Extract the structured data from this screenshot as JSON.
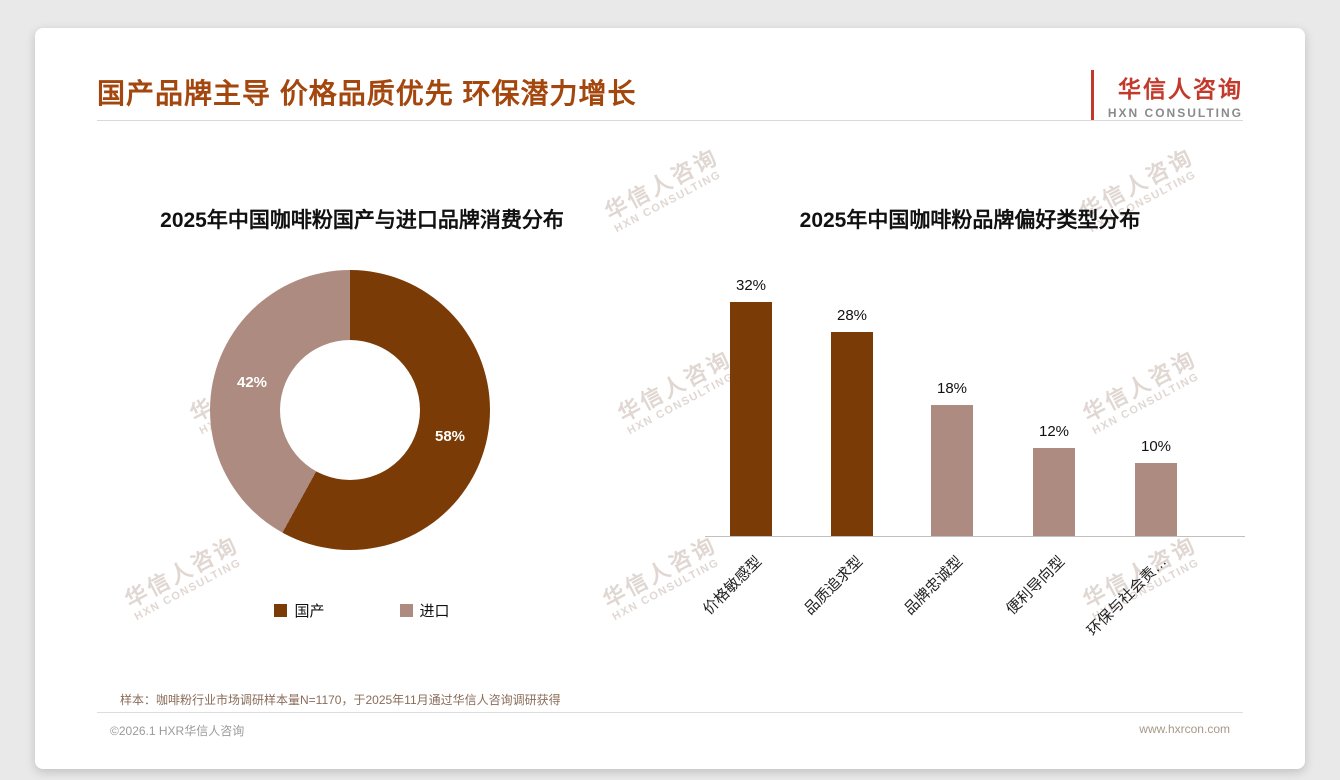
{
  "page": {
    "title": "国产品牌主导 价格品质优先 环保潜力增长",
    "logo": {
      "name": "华信人咨询",
      "subtitle": "HXN CONSULTING"
    },
    "footnote": "样本：咖啡粉行业市场调研样本量N=1170，于2025年11月通过华信人咨询调研获得",
    "footer": {
      "copyright": "©2026.1 HXR华信人咨询",
      "website": "www.hxrcon.com"
    },
    "watermark": {
      "line1": "华信人咨询",
      "line2": "HXN CONSULTING"
    }
  },
  "colors": {
    "primary_brown": "#7b3b06",
    "secondary_mauve": "#ae8b81",
    "title_brown": "#a3470e",
    "logo_red": "#c23a2b"
  },
  "chart_data": [
    {
      "type": "pie",
      "subtype": "donut",
      "title": "2025年中国咖啡粉国产与进口品牌消费分布",
      "labels": [
        "国产",
        "进口"
      ],
      "values": [
        58,
        42
      ],
      "value_labels": [
        "58%",
        "42%"
      ],
      "colors": [
        "#7b3b06",
        "#ae8b81"
      ],
      "legend_position": "bottom"
    },
    {
      "type": "bar",
      "title": "2025年中国咖啡粉品牌偏好类型分布",
      "categories": [
        "价格敏感型",
        "品质追求型",
        "品牌忠诚型",
        "便利导向型",
        "环保与社会责…"
      ],
      "values": [
        32,
        28,
        18,
        12,
        10
      ],
      "value_labels": [
        "32%",
        "28%",
        "18%",
        "12%",
        "10%"
      ],
      "bar_colors": [
        "#7b3b06",
        "#7b3b06",
        "#ae8b81",
        "#ae8b81",
        "#ae8b81"
      ],
      "ylim": [
        0,
        35
      ],
      "grid": false,
      "xlabel": "",
      "ylabel": ""
    }
  ]
}
